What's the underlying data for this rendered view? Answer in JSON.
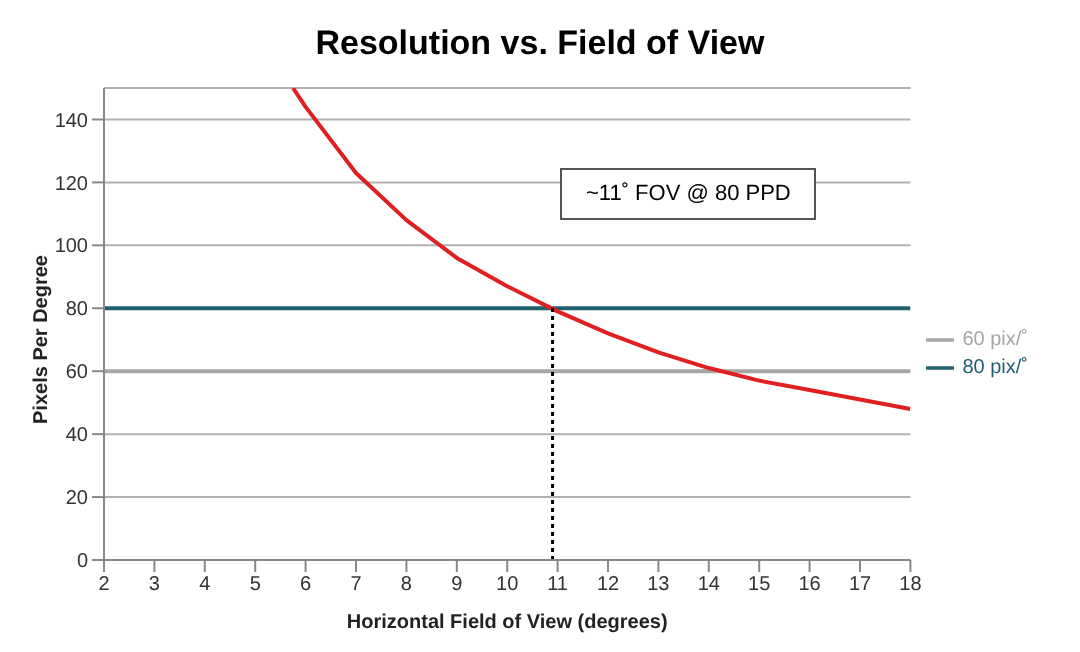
{
  "chart_data": {
    "type": "line",
    "title": "Resolution vs. Field of View",
    "xlabel": "Horizontal  Field of View (degrees)",
    "ylabel": "Pixels Per Degree",
    "xlim": [
      2,
      18
    ],
    "xticks": [
      2,
      3,
      4,
      5,
      6,
      7,
      8,
      9,
      10,
      11,
      12,
      13,
      14,
      15,
      16,
      17,
      18
    ],
    "ylim": [
      0,
      150
    ],
    "yticks": [
      0,
      20,
      40,
      60,
      80,
      100,
      120,
      140
    ],
    "grid": "y",
    "legend": "right",
    "marker": "none",
    "annotations": [
      "~11˚ FOV @ 80 PPD"
    ],
    "series": [
      {
        "name": "60 pix/˚",
        "color": "#a6a6a6",
        "x": [
          2,
          18
        ],
        "values": [
          60,
          60
        ]
      },
      {
        "name": "80 pix/˚",
        "color": "#1f5f6e",
        "x": [
          2,
          18
        ],
        "values": [
          80,
          80
        ]
      },
      {
        "color": "#e02020",
        "x": [
          5.75,
          6,
          7,
          8,
          9,
          10,
          11,
          12,
          13,
          14,
          15,
          16,
          17,
          18
        ],
        "values": [
          150,
          144,
          123,
          108,
          96,
          87,
          79,
          72,
          66,
          61,
          57,
          54,
          51,
          48
        ]
      },
      {
        "color": "#000000",
        "x": [
          10.9,
          10.9
        ],
        "values": [
          0,
          80
        ],
        "line_style": "dotted"
      }
    ]
  }
}
